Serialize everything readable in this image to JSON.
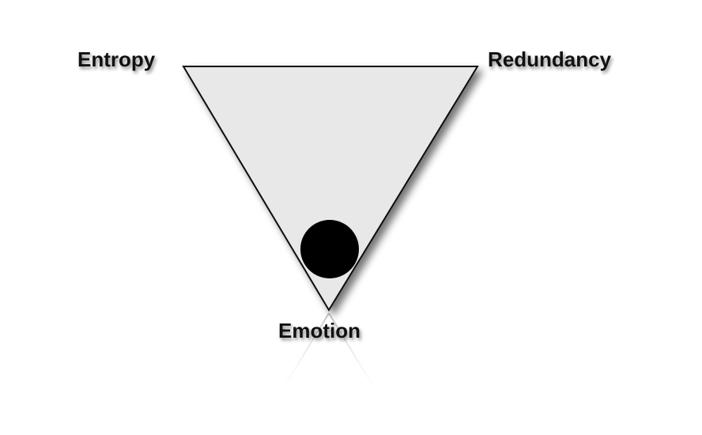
{
  "diagram": {
    "vertices": {
      "top_left": "Entropy",
      "top_right": "Redundancy",
      "bottom": "Emotion"
    },
    "colors": {
      "triangle_fill": "#e8e8e8",
      "triangle_stroke": "#111111",
      "marker_fill": "#000000",
      "background": "#ffffff"
    },
    "marker": {
      "shape": "filled-circle",
      "position_description": "near bottom vertex"
    }
  }
}
